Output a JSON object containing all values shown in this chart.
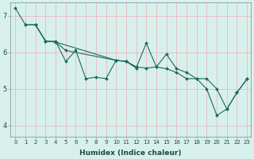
{
  "xlabel": "Humidex (Indice chaleur)",
  "bg_color": "#d8f0ec",
  "plot_bg_color": "#d8f0ec",
  "line_color": "#1a6b5a",
  "grid_color": "#e8b8c0",
  "spine_color": "#8899aa",
  "xlim": [
    -0.5,
    23.4
  ],
  "ylim": [
    3.7,
    7.35
  ],
  "xticks": [
    0,
    1,
    2,
    3,
    4,
    5,
    6,
    7,
    8,
    9,
    10,
    11,
    12,
    13,
    14,
    15,
    16,
    17,
    18,
    19,
    20,
    21,
    22,
    23
  ],
  "yticks": [
    4,
    5,
    6,
    7
  ],
  "series2": {
    "line1": {
      "x": [
        0,
        1,
        2,
        3,
        4,
        5,
        6,
        7,
        8,
        9,
        10,
        11,
        12,
        13,
        14,
        15,
        16,
        17,
        18,
        19,
        20,
        21,
        22,
        23
      ],
      "y": [
        7.2,
        6.75,
        6.75,
        6.3,
        6.3,
        5.75,
        6.05,
        5.28,
        5.32,
        5.28,
        5.78,
        5.75,
        5.57,
        6.25,
        5.6,
        5.95,
        5.55,
        5.45,
        5.28,
        5.0,
        4.28,
        4.45,
        4.9,
        5.27
      ]
    },
    "line2": {
      "x": [
        1,
        2,
        3,
        4,
        10
      ],
      "y": [
        6.75,
        6.75,
        6.3,
        6.28,
        5.78
      ]
    },
    "line3": {
      "x": [
        2,
        3,
        4,
        5,
        10,
        11,
        12
      ],
      "y": [
        6.75,
        6.3,
        6.28,
        6.05,
        5.78,
        5.75,
        5.6
      ]
    },
    "line4": {
      "x": [
        10,
        11,
        12,
        13,
        14,
        15,
        16,
        17,
        18,
        19,
        20,
        21,
        22,
        23
      ],
      "y": [
        5.78,
        5.75,
        5.6,
        5.57,
        5.6,
        5.55,
        5.45,
        5.28,
        5.28,
        5.28,
        5.0,
        4.45,
        4.9,
        5.27
      ]
    }
  },
  "marker": "D",
  "markersize": 2.0,
  "linewidth": 0.8,
  "tick_fontsize": 5,
  "xlabel_fontsize": 6.5
}
